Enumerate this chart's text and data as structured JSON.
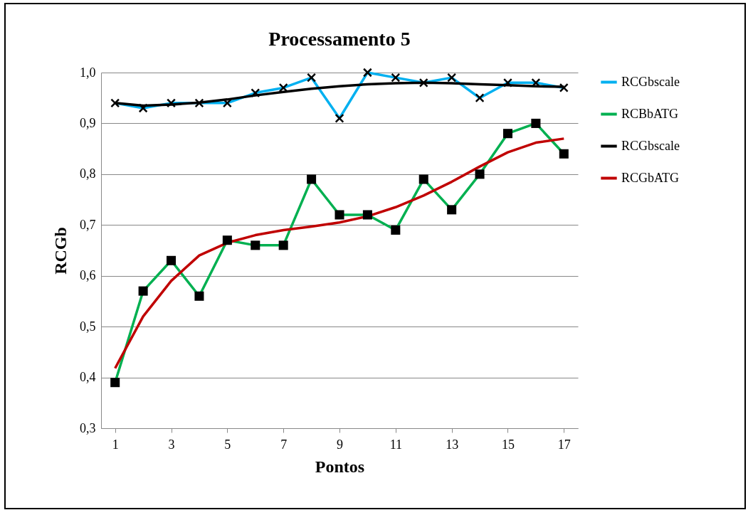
{
  "chart_data": {
    "type": "line",
    "title": "Processamento 5",
    "xlabel": "Pontos",
    "ylabel": "RCGb",
    "x": [
      1,
      2,
      3,
      4,
      5,
      6,
      7,
      8,
      9,
      10,
      11,
      12,
      13,
      14,
      15,
      16,
      17
    ],
    "xlim": [
      0.5,
      17.5
    ],
    "xticks": [
      1,
      3,
      5,
      7,
      9,
      11,
      13,
      15,
      17
    ],
    "ylim": [
      0.3,
      1.0
    ],
    "yticks": [
      {
        "value": 0.3,
        "label": "0,3"
      },
      {
        "value": 0.4,
        "label": "0,4"
      },
      {
        "value": 0.5,
        "label": "0,5"
      },
      {
        "value": 0.6,
        "label": "0,6"
      },
      {
        "value": 0.7,
        "label": "0,7"
      },
      {
        "value": 0.8,
        "label": "0,8"
      },
      {
        "value": 0.9,
        "label": "0,9"
      },
      {
        "value": 1.0,
        "label": "1,0"
      }
    ],
    "grid": "y",
    "legend": "right",
    "series": [
      {
        "name": "RCGbscale",
        "color": "#00b0f0",
        "marker": "cross",
        "values": [
          0.94,
          0.93,
          0.94,
          0.94,
          0.94,
          0.96,
          0.97,
          0.99,
          0.91,
          1.0,
          0.99,
          0.98,
          0.99,
          0.95,
          0.98,
          0.98,
          0.97
        ]
      },
      {
        "name": "RCBbATG",
        "color": "#00b050",
        "marker": "square",
        "values": [
          0.39,
          0.57,
          0.63,
          0.56,
          0.67,
          0.66,
          0.66,
          0.79,
          0.72,
          0.72,
          0.69,
          0.79,
          0.73,
          0.8,
          0.88,
          0.9,
          0.84
        ]
      },
      {
        "name": "RCGbscale",
        "color": "#000000",
        "marker": "none",
        "values": [
          0.94,
          0.935,
          0.937,
          0.941,
          0.947,
          0.955,
          0.962,
          0.968,
          0.973,
          0.977,
          0.979,
          0.98,
          0.979,
          0.977,
          0.975,
          0.973,
          0.972
        ]
      },
      {
        "name": "RCGbATG",
        "color": "#c00000",
        "marker": "none",
        "values": [
          0.418,
          0.52,
          0.59,
          0.64,
          0.665,
          0.68,
          0.69,
          0.697,
          0.705,
          0.717,
          0.735,
          0.758,
          0.785,
          0.815,
          0.843,
          0.862,
          0.87
        ]
      }
    ]
  }
}
